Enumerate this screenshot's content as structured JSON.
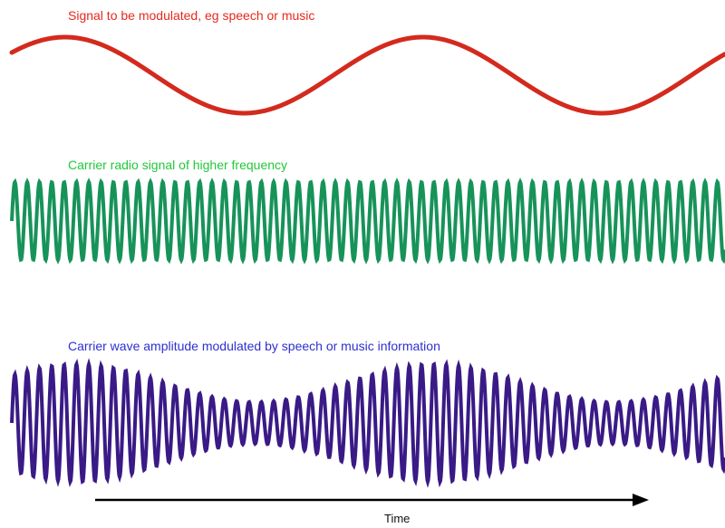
{
  "labels": {
    "signal": "Signal to be modulated, eg speech or music",
    "carrier": "Carrier radio signal of higher frequency",
    "modulated": "Carrier wave amplitude modulated by speech or music information",
    "time_axis": "Time"
  },
  "colors": {
    "signal": "#d42a1e",
    "carrier": "#17935a",
    "modulated": "#3a1a86",
    "arrow": "#000000"
  }
}
